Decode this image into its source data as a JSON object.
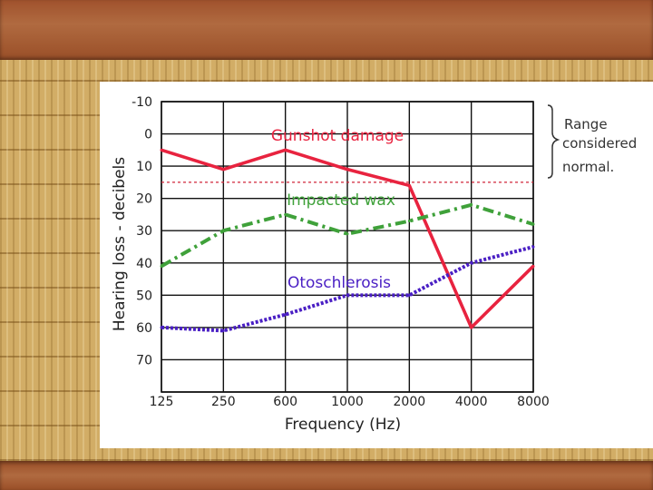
{
  "chart_data": {
    "type": "line",
    "xlabel": "Frequency (Hz)",
    "ylabel": "Hearing loss - decibels",
    "categories": [
      "125",
      "250",
      "600",
      "1000",
      "2000",
      "4000",
      "8000"
    ],
    "y_ticks": [
      "-10",
      "0",
      "10",
      "20",
      "30",
      "40",
      "50",
      "60",
      "70"
    ],
    "ylim": [
      -10,
      80
    ],
    "y_inverted": true,
    "grid": true,
    "normal_threshold": 15,
    "series": [
      {
        "name": "Gunshot damage",
        "style": "solid",
        "color": "#e8233f",
        "values": [
          5,
          11,
          5,
          11,
          16,
          60,
          41
        ]
      },
      {
        "name": "Impacted wax",
        "style": "dash-dot",
        "color": "#3fa13a",
        "values": [
          41,
          30,
          25,
          31,
          27,
          22,
          28
        ]
      },
      {
        "name": "Otoschlerosis",
        "style": "dotted",
        "color": "#4a1fc4",
        "values": [
          60,
          61,
          56,
          50,
          50,
          40,
          35
        ]
      }
    ],
    "annotation": {
      "lines": [
        "Range",
        "considered",
        "normal."
      ]
    }
  }
}
